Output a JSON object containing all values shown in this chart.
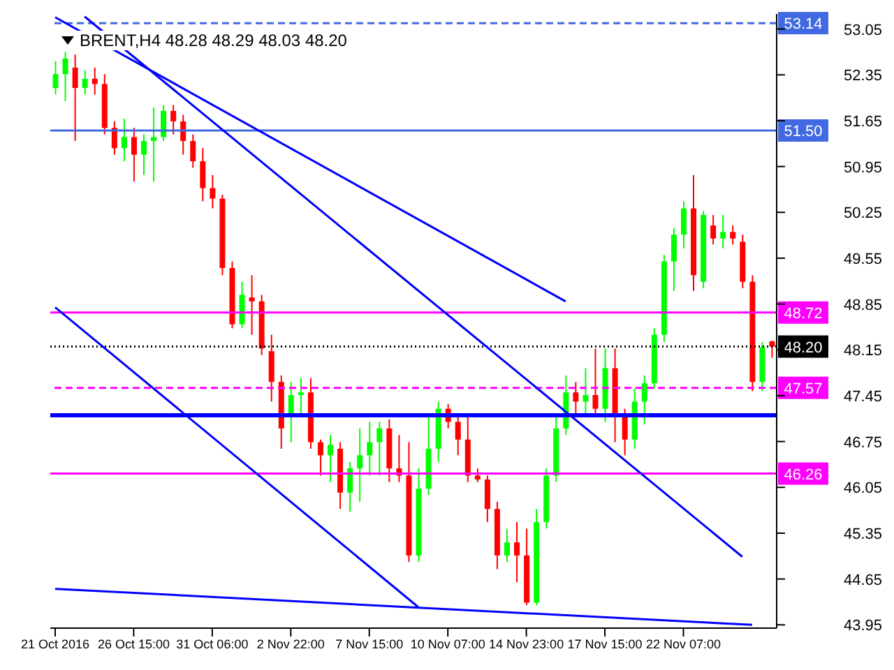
{
  "chart_data": {
    "type": "candlestick",
    "title": "BRENT,H4  48.28 48.29 48.03 48.20",
    "categories": [
      "21 Oct 2016",
      null,
      null,
      null,
      null,
      null,
      null,
      null,
      "26 Oct 15:00",
      null,
      null,
      null,
      null,
      null,
      null,
      null,
      "31 Oct 06:00",
      null,
      null,
      null,
      null,
      null,
      null,
      null,
      "2 Nov 22:00",
      null,
      null,
      null,
      null,
      null,
      null,
      null,
      "7 Nov 15:00",
      null,
      null,
      null,
      null,
      null,
      null,
      null,
      "10 Nov 07:00",
      null,
      null,
      null,
      null,
      null,
      null,
      null,
      "14 Nov 23:00",
      null,
      null,
      null,
      null,
      null,
      null,
      null,
      "17 Nov 15:00",
      null,
      null,
      null,
      null,
      null,
      null,
      null,
      "22 Nov 07:00",
      null,
      null,
      null,
      null,
      null,
      null,
      null,
      null,
      null
    ],
    "ohlc": [
      [
        52.15,
        52.56,
        52.05,
        52.36
      ],
      [
        52.36,
        52.7,
        51.95,
        52.6
      ],
      [
        52.46,
        52.66,
        51.34,
        52.15
      ],
      [
        52.15,
        52.42,
        52.05,
        52.29
      ],
      [
        52.29,
        52.46,
        52.05,
        52.21
      ],
      [
        52.21,
        52.36,
        51.44,
        51.54
      ],
      [
        51.54,
        51.64,
        51.13,
        51.23
      ],
      [
        51.23,
        51.68,
        51.03,
        51.4
      ],
      [
        51.4,
        51.54,
        50.72,
        51.13
      ],
      [
        51.13,
        51.44,
        50.82,
        51.34
      ],
      [
        51.34,
        51.85,
        50.72,
        51.4
      ],
      [
        51.4,
        51.89,
        51.34,
        51.8
      ],
      [
        51.8,
        51.89,
        51.44,
        51.64
      ],
      [
        51.64,
        51.74,
        51.13,
        51.34
      ],
      [
        51.34,
        51.44,
        50.93,
        51.03
      ],
      [
        51.03,
        51.23,
        50.42,
        50.62
      ],
      [
        50.62,
        50.82,
        50.31,
        50.46
      ],
      [
        50.46,
        50.52,
        49.29,
        49.4
      ],
      [
        49.4,
        49.5,
        48.48,
        48.54
      ],
      [
        48.54,
        49.19,
        48.48,
        48.99
      ],
      [
        48.95,
        49.29,
        48.38,
        48.89
      ],
      [
        48.89,
        48.99,
        48.07,
        48.17
      ],
      [
        48.13,
        48.38,
        47.36,
        47.66
      ],
      [
        47.66,
        47.76,
        46.64,
        46.95
      ],
      [
        47.15,
        47.66,
        46.74,
        47.46
      ],
      [
        47.46,
        47.72,
        47.15,
        47.5
      ],
      [
        47.5,
        47.72,
        46.64,
        46.74
      ],
      [
        46.74,
        46.78,
        46.23,
        46.54
      ],
      [
        46.54,
        46.85,
        46.13,
        46.7
      ],
      [
        46.64,
        46.74,
        45.72,
        45.97
      ],
      [
        45.97,
        46.44,
        45.68,
        46.34
      ],
      [
        46.34,
        46.95,
        45.83,
        46.54
      ],
      [
        46.54,
        47.05,
        46.23,
        46.74
      ],
      [
        46.74,
        47.05,
        46.23,
        46.95
      ],
      [
        46.95,
        47.09,
        46.13,
        46.34
      ],
      [
        46.34,
        46.85,
        46.13,
        46.23
      ],
      [
        46.23,
        46.74,
        44.91,
        45.01
      ],
      [
        45.01,
        46.34,
        44.91,
        46.03
      ],
      [
        46.03,
        47.15,
        45.93,
        46.64
      ],
      [
        46.64,
        47.36,
        46.44,
        47.25
      ],
      [
        47.25,
        47.32,
        46.95,
        47.05
      ],
      [
        47.05,
        47.15,
        46.54,
        46.78
      ],
      [
        46.78,
        47.15,
        46.13,
        46.23
      ],
      [
        46.23,
        46.34,
        46.13,
        46.17
      ],
      [
        46.17,
        46.23,
        45.52,
        45.72
      ],
      [
        45.72,
        45.83,
        44.8,
        45.01
      ],
      [
        45.01,
        45.42,
        44.91,
        45.21
      ],
      [
        45.21,
        45.52,
        44.6,
        45.01
      ],
      [
        45.01,
        45.42,
        44.25,
        44.29
      ],
      [
        44.29,
        45.72,
        44.25,
        45.52
      ],
      [
        45.52,
        46.34,
        45.42,
        46.23
      ],
      [
        46.23,
        47.15,
        46.13,
        46.95
      ],
      [
        46.95,
        47.76,
        46.85,
        47.5
      ],
      [
        47.5,
        47.66,
        47.15,
        47.36
      ],
      [
        47.36,
        47.87,
        47.15,
        47.46
      ],
      [
        47.46,
        48.17,
        47.15,
        47.25
      ],
      [
        47.25,
        48.17,
        47.05,
        47.87
      ],
      [
        47.87,
        48.17,
        46.74,
        47.15
      ],
      [
        47.15,
        47.25,
        46.54,
        46.78
      ],
      [
        46.78,
        47.56,
        46.64,
        47.36
      ],
      [
        47.36,
        47.76,
        47.01,
        47.64
      ],
      [
        47.64,
        48.48,
        47.56,
        48.38
      ],
      [
        48.38,
        49.6,
        48.27,
        49.5
      ],
      [
        49.5,
        50.01,
        49.05,
        49.91
      ],
      [
        49.91,
        50.42,
        49.7,
        50.31
      ],
      [
        50.31,
        50.82,
        49.05,
        49.29
      ],
      [
        49.19,
        50.27,
        49.09,
        50.21
      ],
      [
        50.05,
        50.21,
        49.76,
        49.85
      ],
      [
        49.85,
        50.21,
        49.7,
        49.95
      ],
      [
        49.95,
        50.05,
        49.76,
        49.85
      ],
      [
        49.8,
        49.91,
        49.09,
        49.19
      ],
      [
        49.19,
        49.29,
        47.52,
        47.66
      ],
      [
        47.66,
        48.27,
        47.52,
        48.19
      ],
      [
        48.28,
        48.29,
        48.03,
        48.2
      ]
    ],
    "colors": [
      "#00ff00",
      "#00ff00",
      "#ff0000",
      "#00ff00",
      "#ff0000",
      "#ff0000",
      "#ff0000",
      "#00ff00",
      "#ff0000",
      "#00ff00",
      "#00ff00",
      "#00ff00",
      "#ff0000",
      "#ff0000",
      "#ff0000",
      "#ff0000",
      "#ff0000",
      "#ff0000",
      "#ff0000",
      "#00ff00",
      "#ff0000",
      "#ff0000",
      "#ff0000",
      "#ff0000",
      "#00ff00",
      "#00ff00",
      "#ff0000",
      "#ff0000",
      "#00ff00",
      "#ff0000",
      "#00ff00",
      "#00ff00",
      "#00ff00",
      "#00ff00",
      "#ff0000",
      "#ff0000",
      "#ff0000",
      "#00ff00",
      "#00ff00",
      "#00ff00",
      "#ff0000",
      "#ff0000",
      "#ff0000",
      "#ff0000",
      "#ff0000",
      "#ff0000",
      "#00ff00",
      "#ff0000",
      "#ff0000",
      "#00ff00",
      "#00ff00",
      "#00ff00",
      "#00ff00",
      "#ff0000",
      "#00ff00",
      "#ff0000",
      "#00ff00",
      "#ff0000",
      "#ff0000",
      "#00ff00",
      "#00ff00",
      "#00ff00",
      "#00ff00",
      "#00ff00",
      "#00ff00",
      "#ff0000",
      "#00ff00",
      "#ff0000",
      "#00ff00",
      "#ff0000",
      "#ff0000",
      "#ff0000",
      "#00ff00",
      "#ff0000"
    ],
    "series": [
      {
        "type": "line",
        "color": "#0000ff",
        "values": [
          null,
          null,
          null,
          53.24,
          null,
          null,
          null,
          null,
          null,
          null,
          null,
          null,
          null,
          null,
          null,
          null,
          null,
          null,
          null,
          null,
          null,
          null,
          null,
          null,
          null,
          null,
          null,
          null,
          null,
          null,
          null,
          null,
          null,
          null,
          null,
          null,
          null,
          null,
          null,
          null,
          null,
          null,
          null,
          null,
          null,
          null,
          null,
          null,
          null,
          null,
          null,
          null,
          null,
          null,
          null,
          null,
          null,
          null,
          null,
          null,
          null,
          null,
          null,
          null,
          null,
          null,
          null,
          null,
          null,
          null,
          44.99,
          null,
          null,
          null
        ]
      },
      {
        "type": "line",
        "color": "#0000ff",
        "values": [
          48.8,
          null,
          null,
          null,
          null,
          null,
          null,
          null,
          null,
          null,
          null,
          null,
          null,
          null,
          null,
          null,
          null,
          null,
          null,
          null,
          null,
          null,
          null,
          null,
          null,
          null,
          null,
          null,
          null,
          null,
          null,
          null,
          null,
          null,
          null,
          null,
          null,
          44.22,
          null,
          null,
          null,
          null,
          null,
          null,
          null,
          null,
          null,
          null,
          null,
          null,
          null,
          null,
          null,
          null,
          null,
          null,
          null,
          null,
          null,
          null,
          null,
          null,
          null,
          null,
          null,
          null,
          null,
          null,
          null,
          null,
          null,
          null,
          null,
          null
        ]
      },
      {
        "type": "line",
        "color": "#0000ff",
        "values": [
          53.23,
          null,
          null,
          null,
          null,
          null,
          null,
          null,
          null,
          null,
          null,
          null,
          null,
          null,
          null,
          null,
          null,
          null,
          null,
          null,
          null,
          null,
          null,
          null,
          null,
          null,
          null,
          null,
          null,
          null,
          null,
          null,
          null,
          null,
          null,
          null,
          null,
          null,
          null,
          null,
          null,
          null,
          null,
          null,
          null,
          null,
          null,
          null,
          null,
          null,
          null,
          null,
          48.89,
          null,
          null,
          null,
          null,
          null,
          null,
          null,
          null,
          null,
          null,
          null,
          null,
          null,
          null,
          null,
          null,
          null,
          null,
          null,
          null,
          null
        ]
      },
      {
        "type": "line",
        "color": "#0000ff",
        "values": [
          44.5,
          null,
          null,
          null,
          null,
          null,
          null,
          null,
          null,
          null,
          null,
          null,
          null,
          null,
          null,
          null,
          null,
          null,
          null,
          null,
          null,
          null,
          null,
          null,
          null,
          null,
          null,
          null,
          null,
          null,
          null,
          null,
          null,
          null,
          null,
          null,
          null,
          null,
          null,
          null,
          null,
          null,
          null,
          null,
          null,
          null,
          null,
          null,
          null,
          null,
          null,
          null,
          null,
          null,
          null,
          null,
          null,
          null,
          null,
          null,
          null,
          null,
          null,
          null,
          null,
          null,
          null,
          null,
          null,
          null,
          null,
          43.95,
          null,
          null
        ]
      }
    ],
    "ylim": [
      43.9,
      53.28
    ],
    "yticks": [
      53.05,
      52.35,
      51.65,
      50.95,
      50.25,
      49.55,
      48.85,
      48.15,
      47.45,
      46.75,
      46.05,
      45.35,
      44.65,
      43.95
    ],
    "ref_lines": [
      {
        "axis": "y",
        "value": 53.14,
        "label": "53.14",
        "color": "#4169e1",
        "line_style": "dashed"
      },
      {
        "axis": "y",
        "value": 51.5,
        "label": "51.50",
        "color": "#4169e1",
        "line_style": "solid"
      },
      {
        "axis": "y",
        "value": 48.72,
        "label": "48.72",
        "color": "#ff00ff",
        "line_style": "solid"
      },
      {
        "axis": "y",
        "value": 48.2,
        "label": "48.20",
        "color": "#000000",
        "line_style": "dotted"
      },
      {
        "axis": "y",
        "value": 47.57,
        "label": "47.57",
        "color": "#ff00ff",
        "line_style": "dashed"
      },
      {
        "axis": "y",
        "value": 47.15,
        "label": null,
        "color": "#0000ff",
        "line_style": "solid"
      },
      {
        "axis": "y",
        "value": 46.26,
        "label": "46.26",
        "color": "#ff00ff",
        "line_style": "solid"
      }
    ]
  }
}
